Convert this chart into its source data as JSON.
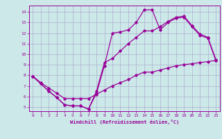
{
  "xlabel": "Windchill (Refroidissement éolien,°C)",
  "bg_color": "#cce8e8",
  "line_color": "#990099",
  "grid_color": "#aaaacc",
  "xlim": [
    -0.5,
    23.5
  ],
  "ylim": [
    4.6,
    14.6
  ],
  "xticks": [
    0,
    1,
    2,
    3,
    4,
    5,
    6,
    7,
    8,
    9,
    10,
    11,
    12,
    13,
    14,
    15,
    16,
    17,
    18,
    19,
    20,
    21,
    22,
    23
  ],
  "yticks": [
    5,
    6,
    7,
    8,
    9,
    10,
    11,
    12,
    13,
    14
  ],
  "line1_x": [
    0,
    1,
    2,
    3,
    4,
    5,
    6,
    7,
    8,
    9,
    10,
    11,
    12,
    13,
    14,
    15,
    16,
    17,
    18,
    19,
    20,
    21,
    22,
    23
  ],
  "line1_y": [
    7.9,
    7.2,
    6.5,
    5.9,
    5.2,
    5.1,
    5.1,
    4.8,
    6.3,
    8.9,
    12.0,
    12.1,
    12.3,
    13.0,
    14.2,
    14.2,
    12.3,
    13.0,
    13.4,
    13.5,
    12.6,
    11.8,
    11.5,
    9.4
  ],
  "line2_x": [
    0,
    1,
    2,
    3,
    4,
    5,
    6,
    7,
    8,
    9,
    10,
    11,
    12,
    13,
    14,
    15,
    16,
    17,
    18,
    19,
    20,
    21,
    22,
    23
  ],
  "line2_y": [
    7.9,
    7.2,
    6.5,
    5.9,
    5.2,
    5.1,
    5.1,
    4.8,
    6.5,
    9.2,
    9.6,
    10.3,
    11.0,
    11.6,
    12.2,
    12.2,
    12.6,
    13.1,
    13.5,
    13.6,
    12.7,
    11.9,
    11.6,
    9.5
  ],
  "line3_x": [
    0,
    1,
    2,
    3,
    4,
    5,
    6,
    7,
    8,
    9,
    10,
    11,
    12,
    13,
    14,
    15,
    16,
    17,
    18,
    19,
    20,
    21,
    22,
    23
  ],
  "line3_y": [
    7.9,
    7.3,
    6.8,
    6.3,
    5.8,
    5.8,
    5.8,
    5.8,
    6.2,
    6.6,
    7.0,
    7.3,
    7.6,
    8.0,
    8.3,
    8.3,
    8.5,
    8.7,
    8.9,
    9.0,
    9.1,
    9.2,
    9.3,
    9.4
  ]
}
